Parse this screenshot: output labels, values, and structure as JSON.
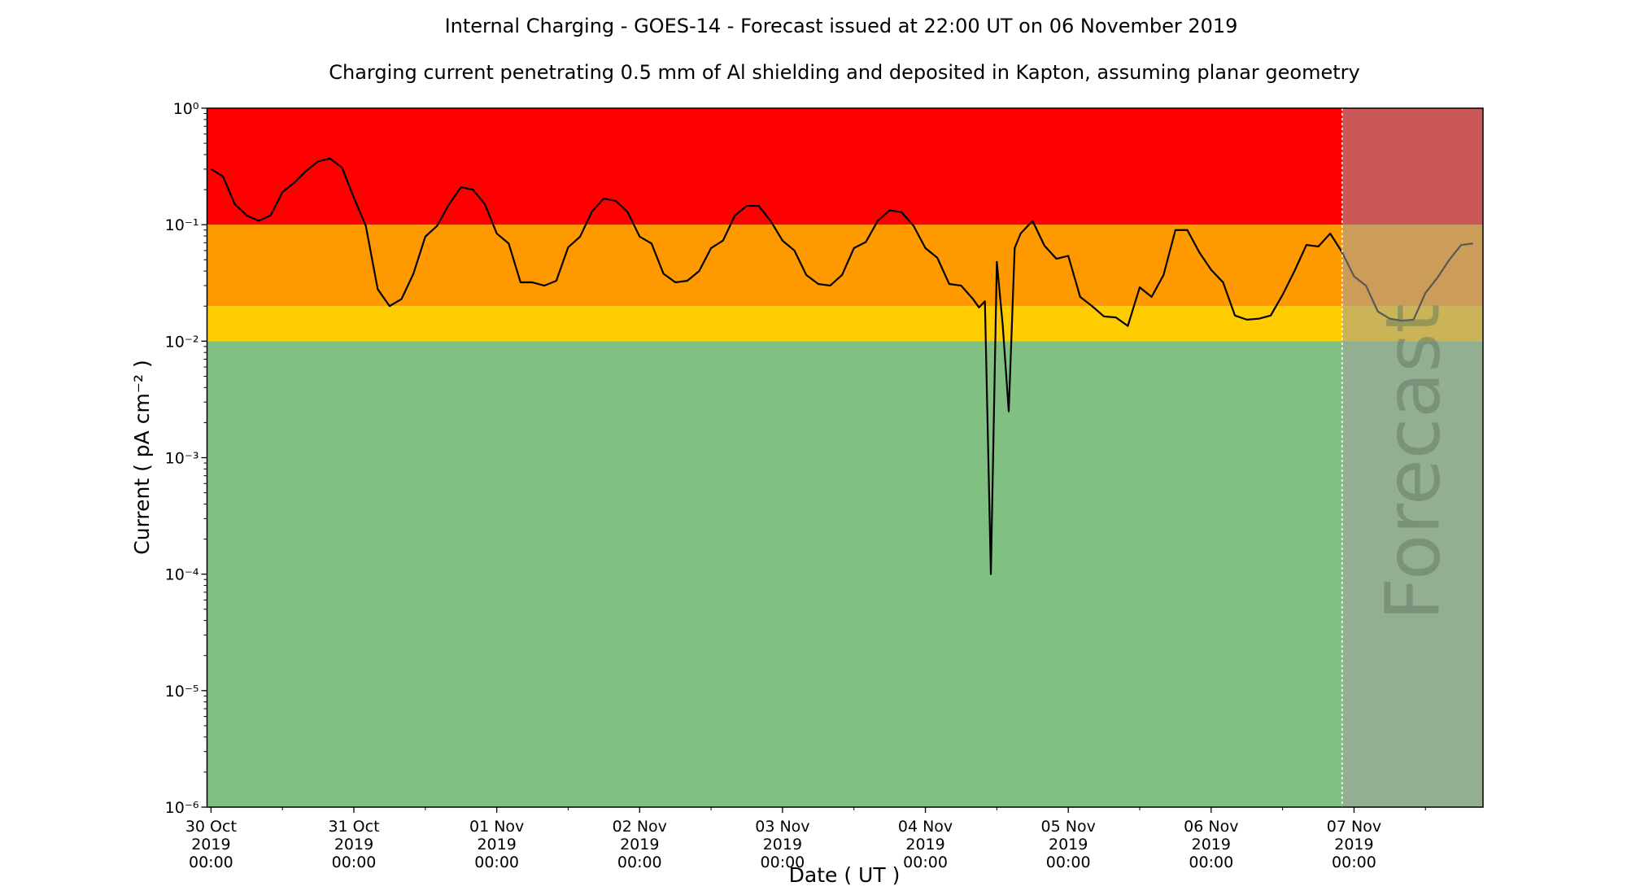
{
  "chart_data": {
    "type": "line",
    "title": "Internal Charging - GOES-14 - Forecast issued at 22:00 UT on 06 November 2019",
    "subtitle": "Charging current penetrating 0.5 mm of Al shielding and deposited in Kapton, assuming planar geometry",
    "x_label": "Date ( UT )",
    "y_label": "Current ( pA cm⁻² )",
    "forecast_label": "Forecast",
    "forecast_start": "2019-11-06 22:00",
    "log_y": true,
    "ylim": [
      1e-06,
      1
    ],
    "yticks": [
      {
        "value": 1,
        "label": "10⁰"
      },
      {
        "value": 0.1,
        "label": "10⁻¹"
      },
      {
        "value": 0.01,
        "label": "10⁻²"
      },
      {
        "value": 0.001,
        "label": "10⁻³"
      },
      {
        "value": 0.0001,
        "label": "10⁻⁴"
      },
      {
        "value": 1e-05,
        "label": "10⁻⁵"
      },
      {
        "value": 1e-06,
        "label": "10⁻⁶"
      }
    ],
    "xlim": [
      "2019-10-29 23:20",
      "2019-11-07 21:40"
    ],
    "xticks": [
      {
        "value": "2019-10-30 00:00",
        "label": [
          "30 Oct",
          "2019",
          "00:00"
        ]
      },
      {
        "value": "2019-10-31 00:00",
        "label": [
          "31 Oct",
          "2019",
          "00:00"
        ]
      },
      {
        "value": "2019-11-01 00:00",
        "label": [
          "01 Nov",
          "2019",
          "00:00"
        ]
      },
      {
        "value": "2019-11-02 00:00",
        "label": [
          "02 Nov",
          "2019",
          "00:00"
        ]
      },
      {
        "value": "2019-11-03 00:00",
        "label": [
          "03 Nov",
          "2019",
          "00:00"
        ]
      },
      {
        "value": "2019-11-04 00:00",
        "label": [
          "04 Nov",
          "2019",
          "00:00"
        ]
      },
      {
        "value": "2019-11-05 00:00",
        "label": [
          "05 Nov",
          "2019",
          "00:00"
        ]
      },
      {
        "value": "2019-11-06 00:00",
        "label": [
          "06 Nov",
          "2019",
          "00:00"
        ]
      },
      {
        "value": "2019-11-07 00:00",
        "label": [
          "07 Nov",
          "2019",
          "00:00"
        ]
      }
    ],
    "zones": [
      {
        "from": 0.1,
        "to": 1,
        "color": "#ff0000"
      },
      {
        "from": 0.02,
        "to": 0.1,
        "color": "#ff9900"
      },
      {
        "from": 0.01,
        "to": 0.02,
        "color": "#ffcc00"
      },
      {
        "from": 1e-06,
        "to": 0.01,
        "color": "#80c080"
      }
    ],
    "x": [
      "2019-10-30 00:00",
      "2019-10-30 02:00",
      "2019-10-30 04:00",
      "2019-10-30 06:00",
      "2019-10-30 08:00",
      "2019-10-30 10:00",
      "2019-10-30 12:00",
      "2019-10-30 14:00",
      "2019-10-30 16:00",
      "2019-10-30 18:00",
      "2019-10-30 20:00",
      "2019-10-30 22:00",
      "2019-10-31 00:00",
      "2019-10-31 02:00",
      "2019-10-31 04:00",
      "2019-10-31 06:00",
      "2019-10-31 08:00",
      "2019-10-31 10:00",
      "2019-10-31 12:00",
      "2019-10-31 14:00",
      "2019-10-31 16:00",
      "2019-10-31 18:00",
      "2019-10-31 20:00",
      "2019-10-31 22:00",
      "2019-11-01 00:00",
      "2019-11-01 02:00",
      "2019-11-01 04:00",
      "2019-11-01 06:00",
      "2019-11-01 08:00",
      "2019-11-01 10:00",
      "2019-11-01 12:00",
      "2019-11-01 14:00",
      "2019-11-01 16:00",
      "2019-11-01 18:00",
      "2019-11-01 20:00",
      "2019-11-01 22:00",
      "2019-11-02 00:00",
      "2019-11-02 02:00",
      "2019-11-02 04:00",
      "2019-11-02 06:00",
      "2019-11-02 08:00",
      "2019-11-02 10:00",
      "2019-11-02 12:00",
      "2019-11-02 14:00",
      "2019-11-02 16:00",
      "2019-11-02 18:00",
      "2019-11-02 20:00",
      "2019-11-02 22:00",
      "2019-11-03 00:00",
      "2019-11-03 02:00",
      "2019-11-03 04:00",
      "2019-11-03 06:00",
      "2019-11-03 08:00",
      "2019-11-03 10:00",
      "2019-11-03 12:00",
      "2019-11-03 14:00",
      "2019-11-03 16:00",
      "2019-11-03 18:00",
      "2019-11-03 20:00",
      "2019-11-03 22:00",
      "2019-11-04 00:00",
      "2019-11-04 02:00",
      "2019-11-04 04:00",
      "2019-11-04 06:00",
      "2019-11-04 08:00",
      "2019-11-04 09:00",
      "2019-11-04 10:00",
      "2019-11-04 11:00",
      "2019-11-04 12:00",
      "2019-11-04 13:00",
      "2019-11-04 14:00",
      "2019-11-04 15:00",
      "2019-11-04 16:00",
      "2019-11-04 18:00",
      "2019-11-04 20:00",
      "2019-11-04 22:00",
      "2019-11-05 00:00",
      "2019-11-05 02:00",
      "2019-11-05 04:00",
      "2019-11-05 06:00",
      "2019-11-05 08:00",
      "2019-11-05 10:00",
      "2019-11-05 12:00",
      "2019-11-05 14:00",
      "2019-11-05 16:00",
      "2019-11-05 18:00",
      "2019-11-05 20:00",
      "2019-11-05 22:00",
      "2019-11-06 00:00",
      "2019-11-06 02:00",
      "2019-11-06 04:00",
      "2019-11-06 06:00",
      "2019-11-06 08:00",
      "2019-11-06 10:00",
      "2019-11-06 12:00",
      "2019-11-06 14:00",
      "2019-11-06 16:00",
      "2019-11-06 18:00",
      "2019-11-06 20:00",
      "2019-11-06 22:00",
      "2019-11-07 00:00",
      "2019-11-07 02:00",
      "2019-11-07 04:00",
      "2019-11-07 06:00",
      "2019-11-07 08:00",
      "2019-11-07 10:00",
      "2019-11-07 12:00",
      "2019-11-07 14:00",
      "2019-11-07 16:00",
      "2019-11-07 18:00",
      "2019-11-07 20:00"
    ],
    "series": [
      {
        "name": "Current",
        "color": "#000000",
        "values": [
          0.3,
          0.26,
          0.15,
          0.12,
          0.108,
          0.12,
          0.19,
          0.23,
          0.29,
          0.35,
          0.37,
          0.31,
          0.17,
          0.098,
          0.028,
          0.02,
          0.023,
          0.038,
          0.079,
          0.098,
          0.15,
          0.21,
          0.2,
          0.15,
          0.084,
          0.069,
          0.032,
          0.032,
          0.03,
          0.033,
          0.064,
          0.079,
          0.13,
          0.168,
          0.16,
          0.128,
          0.079,
          0.069,
          0.038,
          0.032,
          0.033,
          0.04,
          0.063,
          0.073,
          0.12,
          0.145,
          0.145,
          0.108,
          0.073,
          0.06,
          0.037,
          0.031,
          0.03,
          0.037,
          0.063,
          0.071,
          0.108,
          0.133,
          0.128,
          0.098,
          0.063,
          0.052,
          0.031,
          0.03,
          0.023,
          0.0195,
          0.022,
          0.0001,
          0.048,
          0.0135,
          0.0025,
          0.063,
          0.084,
          0.108,
          0.066,
          0.051,
          0.054,
          0.024,
          0.02,
          0.0163,
          0.016,
          0.0135,
          0.029,
          0.024,
          0.037,
          0.09,
          0.09,
          0.058,
          0.041,
          0.032,
          0.0166,
          0.0153,
          0.0156,
          0.0166,
          0.025,
          0.04,
          0.067,
          0.065,
          0.084,
          0.058,
          0.036,
          0.03,
          0.018,
          0.0156,
          0.015,
          0.0153,
          0.026,
          0.035,
          0.05,
          0.067,
          0.069
        ]
      }
    ]
  }
}
